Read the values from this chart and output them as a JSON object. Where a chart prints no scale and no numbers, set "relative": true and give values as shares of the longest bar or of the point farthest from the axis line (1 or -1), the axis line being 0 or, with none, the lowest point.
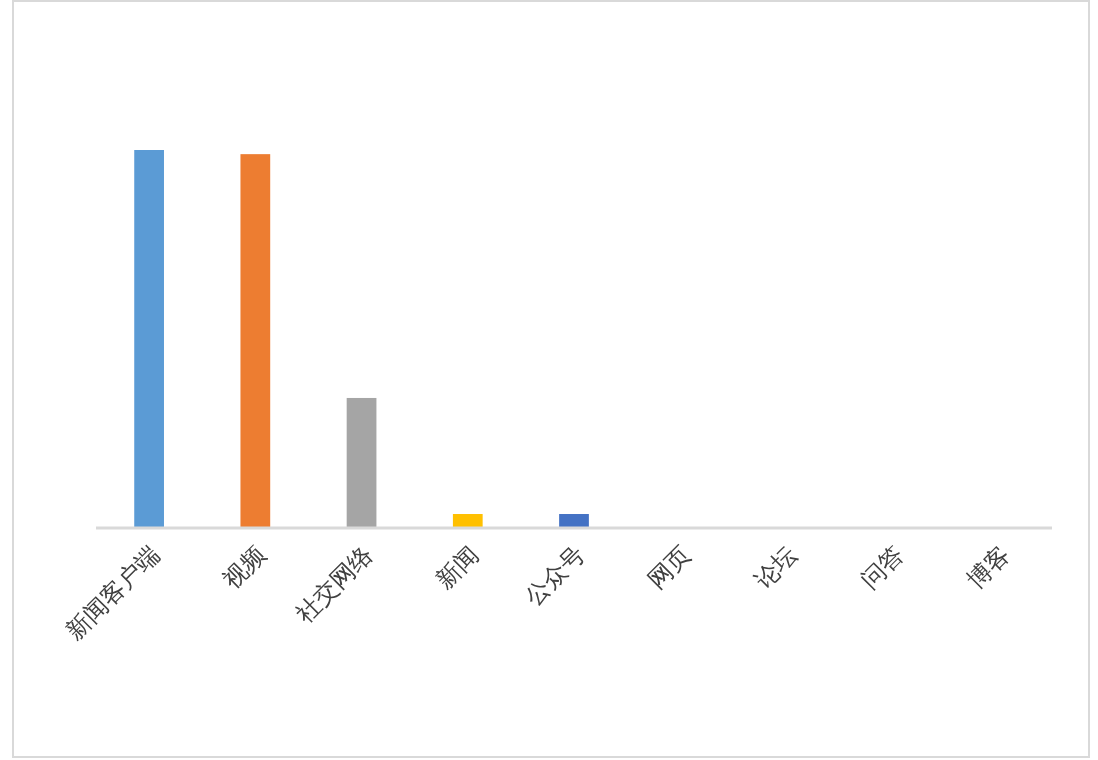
{
  "chart_data": {
    "type": "bar",
    "relative": true,
    "categories": [
      "新闻客户端",
      "视频",
      "社交网络",
      "新闻",
      "公众号",
      "网页",
      "论坛",
      "问答",
      "博客"
    ],
    "values": [
      1,
      0.989,
      0.344,
      0.037,
      0.037,
      0,
      0,
      0,
      0
    ],
    "colors": [
      "#5b9bd5",
      "#ed7d31",
      "#a5a5a5",
      "#ffc000",
      "#4472c4",
      "#70ad47",
      "#255e91",
      "#9e480e",
      "#636363"
    ]
  }
}
